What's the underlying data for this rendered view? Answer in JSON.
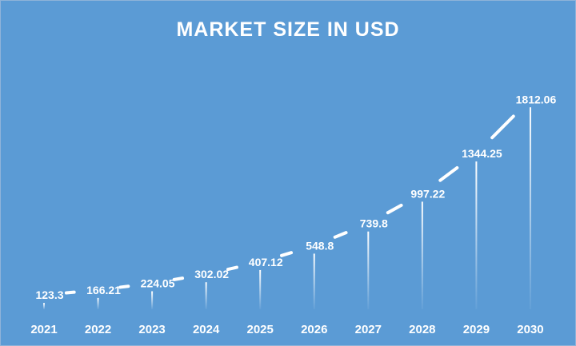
{
  "chart_data": {
    "type": "line",
    "title": "MARKET SIZE IN USD",
    "categories": [
      "2021",
      "2022",
      "2023",
      "2024",
      "2025",
      "2026",
      "2027",
      "2028",
      "2029",
      "2030"
    ],
    "values": [
      123.3,
      166.21,
      224.05,
      302.02,
      407.12,
      548.8,
      739.8,
      997.22,
      1344.25,
      1812.06
    ],
    "data_labels": [
      "123.3",
      "166.21",
      "224.05",
      "302.02",
      "407.12",
      "548.8",
      "739.8",
      "997.22",
      "1344.25",
      "1812.06"
    ],
    "xlabel": "",
    "ylabel": "",
    "grid": false,
    "colors": {
      "background": "#5b9bd5",
      "line": "#ffffff",
      "text": "#ffffff"
    }
  }
}
